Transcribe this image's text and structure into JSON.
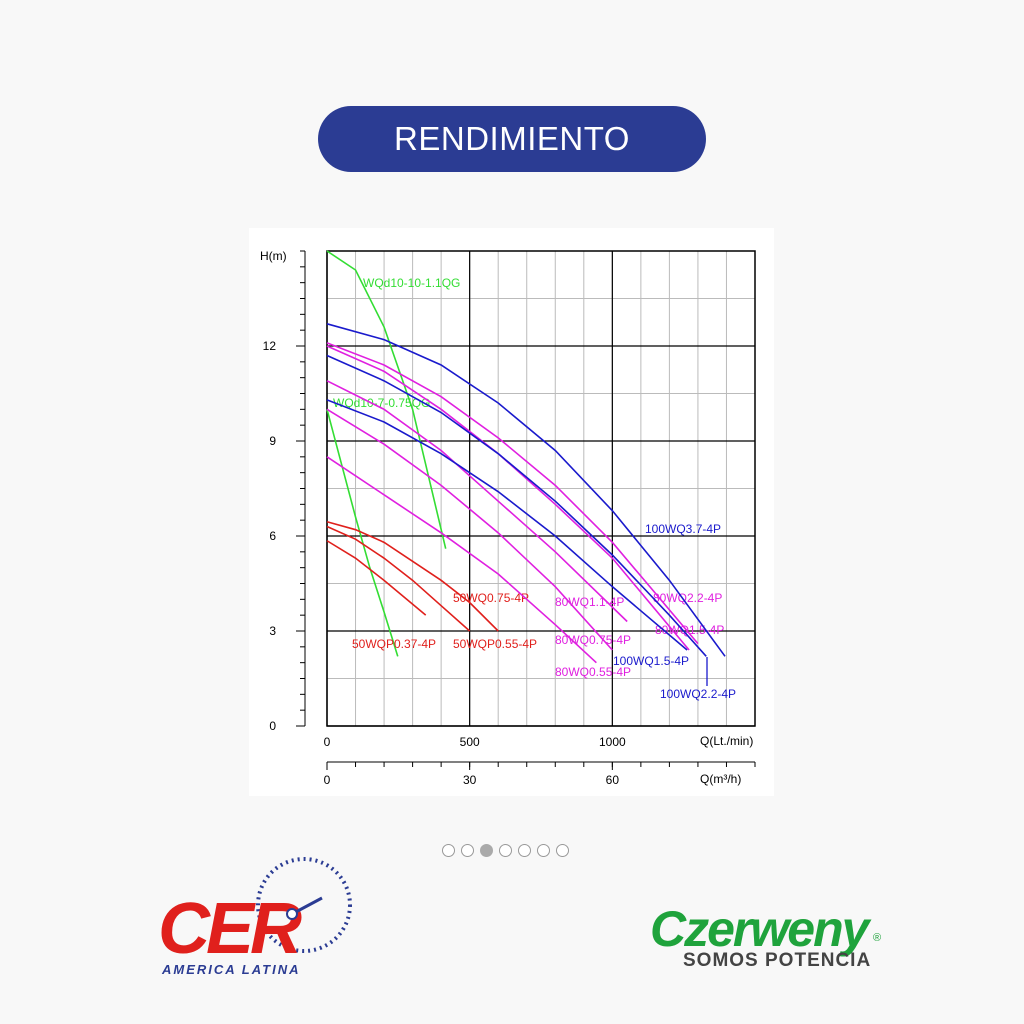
{
  "header": {
    "title": "RENDIMIENTO"
  },
  "chart_data": {
    "type": "line",
    "y_label": "H(m)",
    "x_label": "Q(Lt./min)",
    "x2_label": "Q(m³/h)",
    "xlim": [
      0,
      1500
    ],
    "ylim": [
      0,
      15
    ],
    "x2lim": [
      0,
      90
    ],
    "xticks": [
      0,
      500,
      1000
    ],
    "yticks": [
      0,
      3,
      6,
      9,
      12
    ],
    "x2ticks": [
      0,
      30,
      60
    ],
    "grid": true,
    "series": [
      {
        "name": "WQd10-10-1.1QG",
        "color": "#33dd33",
        "x": [
          0,
          100,
          200,
          300,
          416
        ],
        "values": [
          15,
          14.4,
          12.6,
          10,
          5.6
        ]
      },
      {
        "name": "WQd10-7-0.75QG",
        "color": "#33dd33",
        "x": [
          0,
          50,
          100,
          150,
          200,
          248
        ],
        "values": [
          10,
          8.3,
          6.6,
          5,
          3.6,
          2.2
        ]
      },
      {
        "name": "50WQP0.37-4P",
        "color": "#e0201c",
        "x": [
          0,
          100,
          200,
          346
        ],
        "values": [
          5.85,
          5.3,
          4.6,
          3.5
        ]
      },
      {
        "name": "50WQP0.55-4P",
        "color": "#e0201c",
        "x": [
          0,
          100,
          200,
          300,
          400,
          500
        ],
        "values": [
          6.3,
          5.9,
          5.3,
          4.6,
          3.8,
          3.0
        ]
      },
      {
        "name": "50WQ0.75-4P",
        "color": "#e0201c",
        "x": [
          0,
          100,
          200,
          300,
          400,
          500,
          600
        ],
        "values": [
          6.45,
          6.2,
          5.8,
          5.2,
          4.6,
          3.9,
          3.0
        ]
      },
      {
        "name": "80WQ0.55-4P",
        "color": "#e020e0",
        "x": [
          0,
          200,
          400,
          600,
          800,
          944
        ],
        "values": [
          8.5,
          7.3,
          6.1,
          4.8,
          3.2,
          2.0
        ]
      },
      {
        "name": "80WQ0.75-4P",
        "color": "#e020e0",
        "x": [
          0,
          200,
          400,
          600,
          800,
          1000
        ],
        "values": [
          10,
          8.9,
          7.6,
          6.1,
          4.4,
          2.4
        ]
      },
      {
        "name": "80WQ1.1-4P",
        "color": "#e020e0",
        "x": [
          0,
          200,
          400,
          600,
          800,
          1052
        ],
        "values": [
          10.9,
          10,
          8.7,
          7.1,
          5.5,
          3.3
        ]
      },
      {
        "name": "80WQ1.5-4P",
        "color": "#e020e0",
        "x": [
          0,
          200,
          400,
          600,
          800,
          1000,
          1269
        ],
        "values": [
          12,
          11.2,
          10,
          8.6,
          7,
          5.3,
          2.4
        ]
      },
      {
        "name": "80WQ2.2-4P",
        "color": "#e020e0",
        "x": [
          0,
          200,
          400,
          600,
          800,
          1000,
          1300
        ],
        "values": [
          12.1,
          11.4,
          10.4,
          9.1,
          7.6,
          5.8,
          2.6
        ]
      },
      {
        "name": "100WQ1.5-4P",
        "color": "#1a1acc",
        "x": [
          0,
          200,
          400,
          600,
          800,
          1000,
          1262
        ],
        "values": [
          10.3,
          9.6,
          8.6,
          7.4,
          6,
          4.4,
          2.4
        ]
      },
      {
        "name": "100WQ2.2-4P",
        "color": "#1a1acc",
        "x": [
          0,
          200,
          400,
          600,
          800,
          1000,
          1200,
          1329
        ],
        "values": [
          11.7,
          10.9,
          9.9,
          8.6,
          7.1,
          5.4,
          3.5,
          2.2
        ]
      },
      {
        "name": "100WQ3.7-4P",
        "color": "#1a1acc",
        "x": [
          0,
          200,
          400,
          600,
          800,
          1000,
          1200,
          1395
        ],
        "values": [
          12.7,
          12.2,
          11.4,
          10.2,
          8.7,
          6.8,
          4.6,
          2.2
        ]
      }
    ]
  },
  "carousel": {
    "slides": 7,
    "active": 3
  },
  "logos": {
    "cer": {
      "name": "CER",
      "sub": "AMERICA LATINA"
    },
    "czerweny": {
      "name": "Czerweny",
      "mark": "®",
      "slogan": "SOMOS POTENCIA"
    }
  }
}
